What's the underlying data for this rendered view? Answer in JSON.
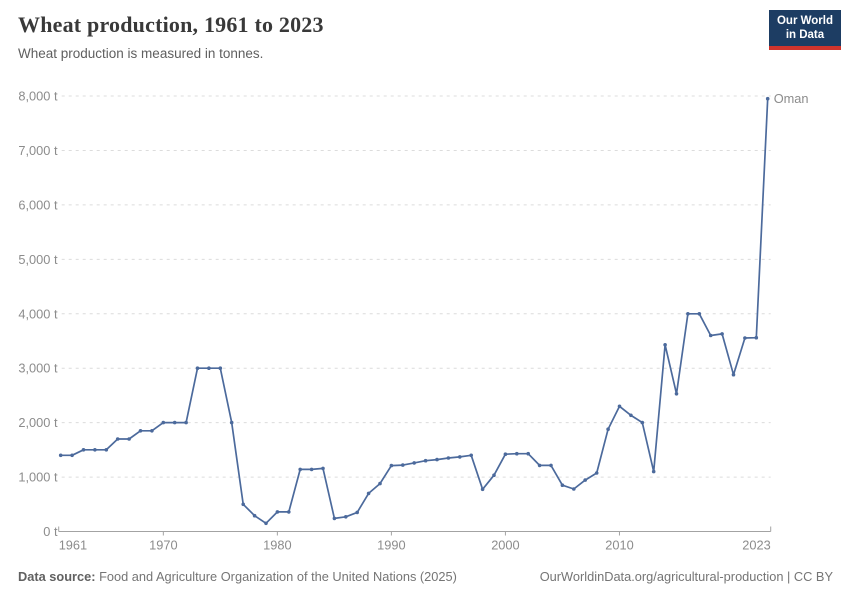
{
  "header": {
    "title": "Wheat production, 1961 to 2023",
    "subtitle": "Wheat production is measured in tonnes.",
    "logo_line1": "Our World",
    "logo_line2": "in Data"
  },
  "brand": {
    "logo_bg": "#1d3d63",
    "logo_accent": "#d0342c"
  },
  "chart_data": {
    "type": "line",
    "title": "Wheat production, 1961 to 2023",
    "xlabel": "",
    "ylabel": "tonnes",
    "ylim": [
      0,
      8000
    ],
    "y_ticks": [
      0,
      1000,
      2000,
      3000,
      4000,
      5000,
      6000,
      7000,
      8000
    ],
    "y_tick_suffix": " t",
    "x_ticks": [
      1961,
      1970,
      1980,
      1990,
      2000,
      2010,
      2023
    ],
    "grid": "horizontal dashed",
    "legend_position": "end-of-line",
    "line_color": "#4c6a9c",
    "x": [
      1961,
      1962,
      1963,
      1964,
      1965,
      1966,
      1967,
      1968,
      1969,
      1970,
      1971,
      1972,
      1973,
      1974,
      1975,
      1976,
      1977,
      1978,
      1979,
      1980,
      1981,
      1982,
      1983,
      1984,
      1985,
      1986,
      1987,
      1988,
      1989,
      1990,
      1991,
      1992,
      1993,
      1994,
      1995,
      1996,
      1997,
      1998,
      1999,
      2000,
      2001,
      2002,
      2003,
      2004,
      2005,
      2006,
      2007,
      2008,
      2009,
      2010,
      2011,
      2012,
      2013,
      2014,
      2015,
      2016,
      2017,
      2018,
      2019,
      2020,
      2021,
      2022,
      2023
    ],
    "series": [
      {
        "name": "Oman",
        "values": [
          1400,
          1400,
          1500,
          1500,
          1500,
          1700,
          1700,
          1850,
          1850,
          2000,
          2000,
          2000,
          3000,
          3000,
          3000,
          2000,
          500,
          290,
          150,
          360,
          360,
          1140,
          1140,
          1160,
          240,
          270,
          350,
          700,
          880,
          1210,
          1220,
          1260,
          1300,
          1320,
          1350,
          1370,
          1400,
          775,
          1035,
          1420,
          1430,
          1430,
          1215,
          1215,
          850,
          780,
          945,
          1075,
          1880,
          2300,
          2135,
          2000,
          1100,
          3430,
          2530,
          4000,
          4000,
          3600,
          3630,
          2880,
          3555,
          3560,
          7950
        ]
      }
    ]
  },
  "footer": {
    "source_label": "Data source:",
    "source_text": " Food and Agriculture Organization of the United Nations (2025)",
    "attribution": "OurWorldinData.org/agricultural-production | CC BY"
  }
}
